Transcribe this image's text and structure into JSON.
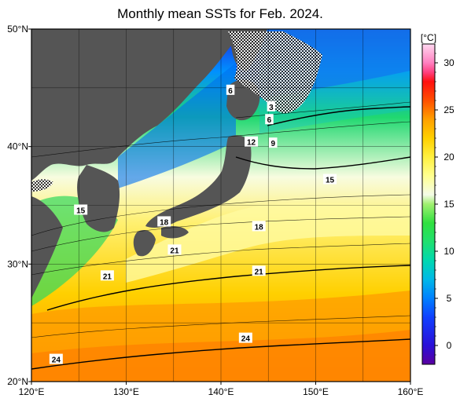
{
  "title": "Monthly mean SSTs for Feb. 2024.",
  "map": {
    "lon_range": [
      120,
      160
    ],
    "lat_range": [
      20,
      50
    ],
    "x_ticks": [
      {
        "lon": 120,
        "label": "120°E"
      },
      {
        "lon": 130,
        "label": "130°E"
      },
      {
        "lon": 140,
        "label": "140°E"
      },
      {
        "lon": 150,
        "label": "150°E"
      },
      {
        "lon": 160,
        "label": "160°E"
      }
    ],
    "y_ticks": [
      {
        "lat": 50,
        "label": "50°N"
      },
      {
        "lat": 40,
        "label": "40°N"
      },
      {
        "lat": 30,
        "label": "30°N"
      },
      {
        "lat": 20,
        "label": "20°N"
      }
    ],
    "grid": true,
    "land_color": "#555555",
    "sea_ice_pattern": "checkered",
    "contour_labels": [
      {
        "text": "6",
        "lon": 141.0,
        "lat": 44.8
      },
      {
        "text": "3",
        "lon": 145.3,
        "lat": 43.4
      },
      {
        "text": "6",
        "lon": 145.1,
        "lat": 42.3
      },
      {
        "text": "12",
        "lon": 143.2,
        "lat": 40.4
      },
      {
        "text": "9",
        "lon": 145.5,
        "lat": 40.3
      },
      {
        "text": "15",
        "lon": 151.5,
        "lat": 37.2
      },
      {
        "text": "15",
        "lon": 125.2,
        "lat": 34.6
      },
      {
        "text": "18",
        "lon": 134.0,
        "lat": 33.6
      },
      {
        "text": "18",
        "lon": 144.0,
        "lat": 33.2
      },
      {
        "text": "21",
        "lon": 135.1,
        "lat": 31.2
      },
      {
        "text": "21",
        "lon": 144.0,
        "lat": 29.4
      },
      {
        "text": "21",
        "lon": 128.0,
        "lat": 29.0
      },
      {
        "text": "24",
        "lon": 142.6,
        "lat": 23.7
      },
      {
        "text": "24",
        "lon": 122.6,
        "lat": 21.9
      }
    ]
  },
  "colorbar": {
    "unit": "[°C]",
    "min": -2,
    "max": 32,
    "ticks": [
      {
        "value": 0,
        "label": "0"
      },
      {
        "value": 5,
        "label": "5"
      },
      {
        "value": 10,
        "label": "10"
      },
      {
        "value": 15,
        "label": "15"
      },
      {
        "value": 20,
        "label": "20"
      },
      {
        "value": 25,
        "label": "25"
      },
      {
        "value": 30,
        "label": "30"
      }
    ],
    "stops": [
      {
        "value": -2,
        "color": "#5a00a0"
      },
      {
        "value": 0,
        "color": "#2a10d8"
      },
      {
        "value": 3,
        "color": "#1040ff"
      },
      {
        "value": 5,
        "color": "#0080ff"
      },
      {
        "value": 7,
        "color": "#00b8e8"
      },
      {
        "value": 9,
        "color": "#00d8b0"
      },
      {
        "value": 11,
        "color": "#20e070"
      },
      {
        "value": 13,
        "color": "#30e040"
      },
      {
        "value": 15,
        "color": "#a0f070"
      },
      {
        "value": 16,
        "color": "#f4fce8"
      },
      {
        "value": 18,
        "color": "#ffff90"
      },
      {
        "value": 20,
        "color": "#fff040"
      },
      {
        "value": 22,
        "color": "#ffd000"
      },
      {
        "value": 24,
        "color": "#ffa000"
      },
      {
        "value": 26,
        "color": "#ff5000"
      },
      {
        "value": 28,
        "color": "#ff1010"
      },
      {
        "value": 29,
        "color": "#ff4080"
      },
      {
        "value": 30,
        "color": "#ff80c0"
      },
      {
        "value": 32,
        "color": "#ffd8f0"
      }
    ]
  }
}
